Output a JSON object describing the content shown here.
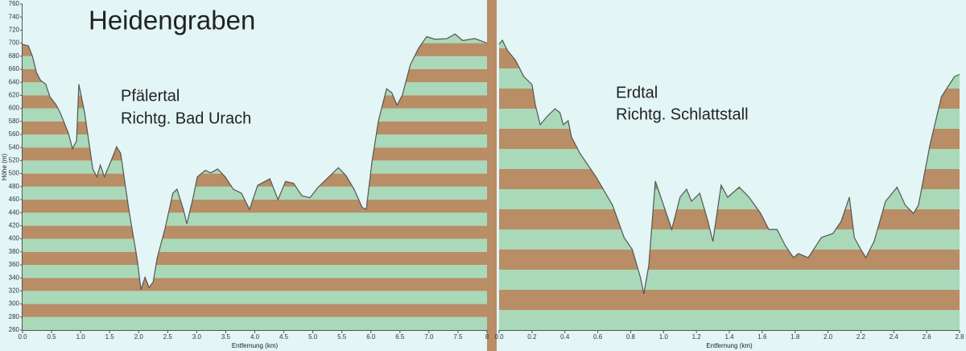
{
  "chart_data": [
    {
      "type": "line",
      "title": "Heidengraben",
      "annotations": [
        "Pfälertal",
        "Richtg. Bad Urach"
      ],
      "xlabel": "Entfernung  (km)",
      "ylabel": "Höhe (m)",
      "x": [
        0.0,
        0.1,
        0.17,
        0.24,
        0.31,
        0.4,
        0.47,
        0.58,
        0.65,
        0.79,
        0.86,
        0.93,
        0.97,
        1.07,
        1.14,
        1.21,
        1.28,
        1.34,
        1.41,
        1.55,
        1.62,
        1.69,
        1.83,
        1.97,
        2.04,
        2.11,
        2.18,
        2.25,
        2.32,
        2.45,
        2.59,
        2.66,
        2.77,
        2.83,
        2.94,
        3.01,
        3.15,
        3.24,
        3.36,
        3.49,
        3.63,
        3.77,
        3.91,
        4.05,
        4.26,
        4.4,
        4.53,
        4.67,
        4.81,
        4.95,
        5.09,
        5.23,
        5.44,
        5.57,
        5.71,
        5.85,
        5.92,
        6.02,
        6.13,
        6.27,
        6.36,
        6.45,
        6.54,
        6.68,
        6.82,
        6.96,
        7.1,
        7.31,
        7.45,
        7.58,
        7.79,
        8.0
      ],
      "values": [
        698,
        696,
        680,
        655,
        643,
        637,
        618,
        605,
        593,
        562,
        538,
        550,
        637,
        593,
        550,
        507,
        495,
        513,
        495,
        525,
        541,
        531,
        445,
        371,
        322,
        341,
        325,
        334,
        371,
        414,
        470,
        476,
        445,
        423,
        464,
        495,
        505,
        501,
        507,
        495,
        476,
        470,
        445,
        482,
        492,
        460,
        488,
        485,
        466,
        463,
        479,
        491,
        509,
        497,
        476,
        448,
        445,
        519,
        581,
        630,
        624,
        605,
        620,
        667,
        692,
        710,
        706,
        707,
        714,
        704,
        707,
        700
      ],
      "xlim": [
        0,
        8
      ],
      "xticks": [
        {
          "value": 0,
          "label": "0.0"
        },
        {
          "value": 0.5,
          "label": "0.5"
        },
        {
          "value": 1,
          "label": "1.0"
        },
        {
          "value": 1.5,
          "label": "1.5"
        },
        {
          "value": 2,
          "label": "2.0"
        },
        {
          "value": 2.5,
          "label": "2.5"
        },
        {
          "value": 3,
          "label": "3.0"
        },
        {
          "value": 3.5,
          "label": "3.5"
        },
        {
          "value": 4,
          "label": "4.0"
        },
        {
          "value": 4.5,
          "label": "4.5"
        },
        {
          "value": 5,
          "label": "5.0"
        },
        {
          "value": 5.5,
          "label": "5.5"
        },
        {
          "value": 6,
          "label": "6.0"
        },
        {
          "value": 6.5,
          "label": "6.5"
        },
        {
          "value": 7,
          "label": "7.0"
        },
        {
          "value": 7.5,
          "label": "7.5"
        },
        8
      ],
      "ylim": [
        260,
        760
      ],
      "yticks": [
        260,
        280,
        300,
        320,
        340,
        360,
        380,
        400,
        420,
        440,
        460,
        480,
        500,
        520,
        540,
        560,
        580,
        600,
        620,
        640,
        660,
        680,
        700,
        720,
        740,
        760
      ],
      "ytick_labels": true,
      "stripe_colors": [
        "#a9d9b9",
        "#b98d66"
      ],
      "line_color": "#555555"
    },
    {
      "type": "line",
      "annotations": [
        "Erdtal",
        "Richtg. Schlattstall"
      ],
      "xlabel": "Entfernung  (km)",
      "x": [
        0.0,
        0.02,
        0.05,
        0.1,
        0.15,
        0.2,
        0.22,
        0.25,
        0.29,
        0.34,
        0.37,
        0.39,
        0.42,
        0.44,
        0.49,
        0.59,
        0.69,
        0.76,
        0.81,
        0.86,
        0.88,
        0.91,
        0.95,
        1.0,
        1.05,
        1.1,
        1.14,
        1.17,
        1.22,
        1.27,
        1.3,
        1.35,
        1.39,
        1.46,
        1.52,
        1.59,
        1.64,
        1.69,
        1.74,
        1.79,
        1.82,
        1.88,
        1.96,
        2.03,
        2.08,
        2.13,
        2.16,
        2.2,
        2.23,
        2.28,
        2.35,
        2.42,
        2.47,
        2.52,
        2.55,
        2.62,
        2.69,
        2.77,
        2.8
      ],
      "values": [
        674,
        678,
        668,
        658,
        642,
        634,
        614,
        594,
        602,
        610,
        606,
        594,
        598,
        582,
        566,
        542,
        514,
        482,
        470,
        442,
        426,
        454,
        538,
        514,
        490,
        522,
        530,
        518,
        526,
        498,
        478,
        534,
        522,
        532,
        522,
        506,
        490,
        490,
        474,
        462,
        466,
        462,
        482,
        486,
        498,
        522,
        482,
        470,
        462,
        478,
        518,
        532,
        514,
        506,
        514,
        574,
        622,
        642,
        644
      ],
      "xlim": [
        0,
        2.8
      ],
      "xticks": [
        {
          "value": 0,
          "label": "0.0"
        },
        {
          "value": 0.2,
          "label": "0.2"
        },
        {
          "value": 0.4,
          "label": "0.4"
        },
        {
          "value": 0.6,
          "label": "0.6"
        },
        {
          "value": 0.8,
          "label": "0.8"
        },
        {
          "value": 1,
          "label": "1.0"
        },
        {
          "value": 1.2,
          "label": "1.2"
        },
        {
          "value": 1.4,
          "label": "1.4"
        },
        {
          "value": 1.6,
          "label": "1.6"
        },
        {
          "value": 1.8,
          "label": "1.8"
        },
        {
          "value": 2,
          "label": "2.0"
        },
        {
          "value": 2.2,
          "label": "2.2"
        },
        {
          "value": 2.4,
          "label": "2.4"
        },
        {
          "value": 2.6,
          "label": "2.6"
        },
        {
          "value": 2.8,
          "label": "2.8"
        }
      ],
      "ylim": [
        390,
        714
      ],
      "yticks": [
        390,
        410,
        430,
        450,
        470,
        490,
        510,
        530,
        550,
        570,
        590,
        610,
        630,
        650,
        670,
        690,
        710
      ],
      "ytick_labels": false,
      "stripe_colors": [
        "#a9d9b9",
        "#b98d66"
      ],
      "line_color": "#555555"
    }
  ]
}
